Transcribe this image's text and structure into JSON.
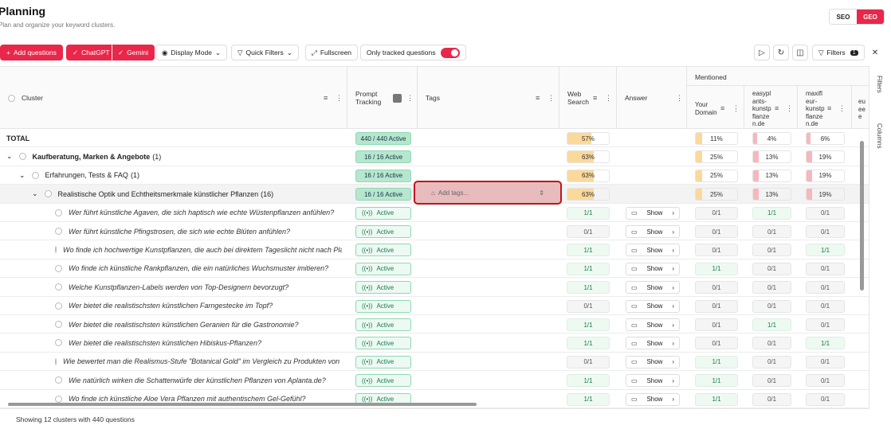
{
  "header": {
    "title": "Planning",
    "subtitle": "Plan and organize your keyword clusters.",
    "mode_seo": "SEO",
    "mode_geo": "GEO"
  },
  "toolbar": {
    "add_questions": "Add questions",
    "chatgpt": "ChatGPT",
    "gemini": "Gemini",
    "display_mode": "Display Mode",
    "quick_filters": "Quick Filters",
    "fullscreen": "Fullscreen",
    "only_tracked": "Only tracked questions",
    "only_tracked_on": true,
    "filters": "Filters",
    "filters_count": "1"
  },
  "columns": {
    "cluster": "Cluster",
    "prompt": "Prompt",
    "tracking": "Tracking",
    "tags": "Tags",
    "web": "Web",
    "search": "Search",
    "answer": "Answer",
    "mentioned": "Mentioned",
    "your": "Your",
    "domain": "Domain",
    "c1": [
      "easypl",
      "ants-",
      "kunstp",
      "flanze",
      "n.de"
    ],
    "c2": [
      "maxifl",
      "eur-",
      "kunstp",
      "flanze",
      "n.de"
    ],
    "c3": [
      "eu",
      "ee",
      "e"
    ]
  },
  "summary_rows": [
    {
      "label": "TOTAL",
      "count": "",
      "tracking": "440 / 440 Active",
      "web": "57%",
      "web_frac": 0.57,
      "your": "11%",
      "your_frac": 0.11,
      "c1": "4%",
      "c1_frac": 0.04,
      "c2": "6%",
      "c2_frac": 0.06
    },
    {
      "label": "Kaufberatung, Marken & Angebote",
      "count": "(1)",
      "tracking": "16 / 16 Active",
      "web": "63%",
      "web_frac": 0.63,
      "your": "25%",
      "your_frac": 0.25,
      "c1": "13%",
      "c1_frac": 0.13,
      "c2": "19%",
      "c2_frac": 0.19
    },
    {
      "label": "Erfahrungen, Tests & FAQ",
      "count": "(1)",
      "tracking": "16 / 16 Active",
      "web": "63%",
      "web_frac": 0.63,
      "your": "25%",
      "your_frac": 0.25,
      "c1": "13%",
      "c1_frac": 0.13,
      "c2": "19%",
      "c2_frac": 0.19
    },
    {
      "label": "Realistische Optik und Echtheitsmerkmale künstlicher Pflanzen",
      "count": "(16)",
      "tracking": "16 / 16 Active",
      "web": "63%",
      "web_frac": 0.63,
      "your": "25%",
      "your_frac": 0.25,
      "c1": "13%",
      "c1_frac": 0.13,
      "c2": "19%",
      "c2_frac": 0.19
    }
  ],
  "tags_placeholder": "Add tags...",
  "active_label": "Active",
  "show_label": "Show",
  "questions": [
    {
      "q": "Wer führt künstliche Agaven, die sich haptisch wie echte Wüstenpflanzen anfühlen?",
      "web": "1/1",
      "your": "0/1",
      "c1": "1/1",
      "c2": "0/1"
    },
    {
      "q": "Wer führt künstliche Pfingstrosen, die sich wie echte Blüten anfühlen?",
      "web": "0/1",
      "your": "0/1",
      "c1": "0/1",
      "c2": "0/1"
    },
    {
      "q": "Wo finde ich hochwertige Kunstpflanzen, die auch bei direktem Tageslicht nicht nach Pla...",
      "web": "1/1",
      "your": "0/1",
      "c1": "0/1",
      "c2": "1/1"
    },
    {
      "q": "Wo finde ich künstliche Rankpflanzen, die ein natürliches Wuchsmuster imitieren?",
      "web": "1/1",
      "your": "1/1",
      "c1": "0/1",
      "c2": "0/1"
    },
    {
      "q": "Welche Kunstpflanzen-Labels werden von Top-Designern bevorzugt?",
      "web": "1/1",
      "your": "0/1",
      "c1": "0/1",
      "c2": "0/1"
    },
    {
      "q": "Wer bietet die realistischsten künstlichen Farngestecke im Topf?",
      "web": "0/1",
      "your": "0/1",
      "c1": "0/1",
      "c2": "0/1"
    },
    {
      "q": "Wer bietet die realistischsten künstlichen Geranien für die Gastronomie?",
      "web": "1/1",
      "your": "0/1",
      "c1": "1/1",
      "c2": "0/1"
    },
    {
      "q": "Wer bietet die realistischsten künstlichen Hibiskus-Pflanzen?",
      "web": "1/1",
      "your": "0/1",
      "c1": "0/1",
      "c2": "1/1"
    },
    {
      "q": "Wie bewertet man die Realismus-Stufe \"Botanical Gold\" im Vergleich zu Produkten von ...",
      "web": "0/1",
      "your": "1/1",
      "c1": "0/1",
      "c2": "0/1"
    },
    {
      "q": "Wie natürlich wirken die Schattenwürfe der künstlichen Pflanzen von Aplanta.de?",
      "web": "1/1",
      "your": "1/1",
      "c1": "0/1",
      "c2": "0/1"
    },
    {
      "q": "Wo finde ich künstliche Aloe Vera Pflanzen mit authentischem Gel-Gefühl?",
      "web": "1/1",
      "your": "1/1",
      "c1": "0/1",
      "c2": "0/1"
    }
  ],
  "side": {
    "filters": "Filters",
    "columns": "Columns"
  },
  "footer": "Showing 12 clusters with 440 questions",
  "colors": {
    "accent": "#e8274a",
    "web_bar": "#fbd99a",
    "your_bar": "#fbd99a",
    "comp_bar": "#f6b8bd",
    "highlight": "#c0141c"
  }
}
